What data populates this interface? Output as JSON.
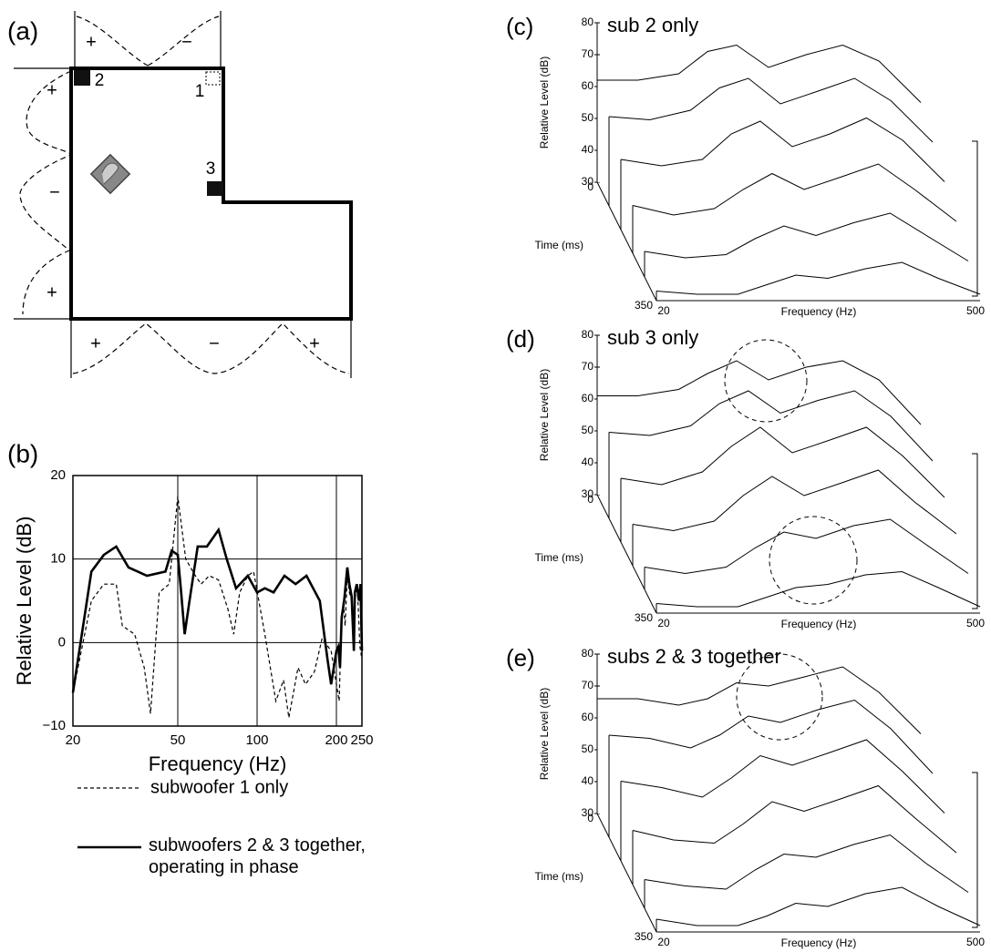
{
  "diagram": {
    "label": "(a)",
    "signs": [
      "+",
      "−",
      "+",
      "−",
      "+",
      "+",
      "−",
      "+"
    ],
    "speakers": [
      "2",
      "1",
      "3"
    ]
  },
  "chart_data": [
    {
      "type": "line",
      "label": "(b)",
      "xlabel": "Frequency (Hz)",
      "ylabel": "Relative Level (dB)",
      "xscale": "log",
      "xlim": [
        20,
        250
      ],
      "xticks": [
        20,
        50,
        100,
        200,
        250
      ],
      "ylim": [
        -10,
        20
      ],
      "yticks": [
        {
          "value": -10,
          "label": "−10"
        },
        0,
        10,
        20
      ],
      "grid": true,
      "series": [
        {
          "name": "subwoofer 1 only",
          "color": "#000000",
          "style": "dashed",
          "x": [
            20,
            23.5,
            26.2,
            29.2,
            30.8,
            34.3,
            37.3,
            39.4,
            42.5,
            46.4,
            50,
            53.6,
            58.3,
            61.3,
            65.8,
            71.4,
            77.5,
            81.5,
            85.9,
            92.2,
            97,
            107,
            117.8,
            126,
            132,
            143,
            152.7,
            165,
            176.5,
            191,
            200,
            204.9,
            208.3,
            212.4,
            215.8,
            220,
            224,
            228.5,
            233,
            235,
            240,
            245.6,
            250
          ],
          "values": [
            -6,
            5,
            7,
            7,
            2,
            1,
            -3,
            -8.5,
            6,
            7,
            17.5,
            10,
            8,
            7,
            8,
            7.5,
            4,
            1,
            6,
            8,
            8.5,
            1,
            -7,
            -4.5,
            -9,
            -3,
            -5,
            -3.5,
            0.5,
            -1,
            -5,
            -7,
            1,
            5,
            2,
            8,
            6,
            5,
            0,
            5,
            7,
            -0.5,
            -2
          ]
        },
        {
          "name": "subwoofers 2 & 3 together, operating in phase",
          "color": "#000000",
          "style": "solid",
          "x": [
            20,
            23.5,
            26.2,
            29.2,
            32.5,
            38.2,
            44.9,
            47.4,
            50,
            51.5,
            53.1,
            55.4,
            59.5,
            64.5,
            71.4,
            76.7,
            83.2,
            92.2,
            100,
            107,
            115.5,
            127,
            140,
            154,
            173,
            185,
            191,
            200,
            203.4,
            206.4,
            209.4,
            214,
            220,
            224,
            228.5,
            233,
            235,
            239,
            243.6,
            246.9,
            250
          ],
          "values": [
            -6,
            8.5,
            10.5,
            11.5,
            9,
            8,
            8.5,
            11,
            10.5,
            6,
            1,
            5,
            11.5,
            11.5,
            13.5,
            10,
            6.5,
            8,
            6,
            6.5,
            6,
            8,
            7,
            8,
            5,
            -2,
            -5,
            -1,
            -0.5,
            -3,
            3,
            5,
            9,
            7,
            5.5,
            -1,
            6,
            7,
            5,
            7,
            -1
          ]
        }
      ]
    },
    {
      "type": "waterfall",
      "label": "(c)",
      "title": "sub 2 only",
      "ylabel": "Relative Level (dB)",
      "xlabel": "Frequency (Hz)",
      "tlabel": "Time (ms)",
      "xscale": "log",
      "xlim": [
        20,
        500
      ],
      "xticks": [
        20,
        500
      ],
      "tlim": [
        0,
        350
      ],
      "tticks": [
        0,
        350
      ],
      "ylim": [
        30,
        80
      ],
      "yticks": [
        30,
        40,
        50,
        60,
        70,
        80
      ],
      "x": [
        20,
        30,
        45,
        60,
        80,
        110,
        160,
        230,
        330,
        500
      ],
      "series": [
        {
          "color": "#000000",
          "values": [
            62,
            62,
            64,
            71,
            73,
            66,
            70,
            73,
            68,
            55
          ]
        },
        {
          "color": "#000000",
          "values": [
            58,
            57,
            60,
            67,
            70,
            62,
            66,
            70,
            63,
            50
          ]
        },
        {
          "color": "#000000",
          "values": [
            52,
            50,
            52,
            60,
            64,
            56,
            60,
            65,
            58,
            45
          ]
        },
        {
          "color": "#000000",
          "values": [
            45,
            42,
            44,
            50,
            55,
            50,
            54,
            58,
            50,
            40
          ]
        },
        {
          "color": "#000000",
          "values": [
            38,
            36,
            37,
            42,
            46,
            43,
            47,
            50,
            43,
            35
          ]
        },
        {
          "color": "#000000",
          "values": [
            33,
            32,
            32,
            35,
            38,
            37,
            40,
            42,
            37,
            32
          ]
        }
      ]
    },
    {
      "type": "waterfall",
      "label": "(d)",
      "title": "sub 3 only",
      "ylabel": "Relative Level (dB)",
      "xlabel": "Frequency (Hz)",
      "tlabel": "Time (ms)",
      "xscale": "log",
      "xlim": [
        20,
        500
      ],
      "xticks": [
        20,
        500
      ],
      "tlim": [
        0,
        350
      ],
      "tticks": [
        0,
        350
      ],
      "ylim": [
        30,
        80
      ],
      "yticks": [
        30,
        40,
        50,
        60,
        70,
        80
      ],
      "x": [
        20,
        30,
        45,
        60,
        80,
        110,
        160,
        230,
        330,
        500
      ],
      "series": [
        {
          "color": "#000000",
          "values": [
            61,
            61,
            63,
            68,
            72,
            66,
            70,
            72,
            66,
            52
          ]
        },
        {
          "color": "#000000",
          "values": [
            57,
            56,
            59,
            66,
            70,
            63,
            67,
            70,
            62,
            48
          ]
        },
        {
          "color": "#000000",
          "values": [
            50,
            48,
            52,
            60,
            66,
            58,
            62,
            66,
            57,
            44
          ]
        },
        {
          "color": "#000000",
          "values": [
            43,
            41,
            44,
            52,
            58,
            52,
            56,
            60,
            50,
            40
          ]
        },
        {
          "color": "#000000",
          "values": [
            37,
            35,
            37,
            43,
            48,
            46,
            50,
            52,
            44,
            35
          ]
        },
        {
          "color": "#000000",
          "values": [
            33,
            32,
            32,
            35,
            38,
            39,
            42,
            43,
            38,
            32
          ]
        }
      ]
    },
    {
      "type": "waterfall",
      "label": "(e)",
      "title": "subs 2 & 3 together",
      "ylabel": "Relative Level (dB)",
      "xlabel": "Frequency (Hz)",
      "tlabel": "Time (ms)",
      "xscale": "log",
      "xlim": [
        20,
        500
      ],
      "xticks": [
        20,
        500
      ],
      "tlim": [
        0,
        350
      ],
      "tticks": [
        0,
        350
      ],
      "ylim": [
        30,
        80
      ],
      "yticks": [
        30,
        40,
        50,
        60,
        70,
        80
      ],
      "x": [
        20,
        30,
        45,
        60,
        80,
        110,
        160,
        230,
        330,
        500
      ],
      "series": [
        {
          "color": "#000000",
          "values": [
            66,
            66,
            64,
            66,
            71,
            70,
            73,
            76,
            68,
            55
          ]
        },
        {
          "color": "#000000",
          "values": [
            62,
            61,
            58,
            62,
            68,
            66,
            70,
            73,
            64,
            50
          ]
        },
        {
          "color": "#000000",
          "values": [
            55,
            53,
            50,
            56,
            63,
            60,
            64,
            68,
            58,
            45
          ]
        },
        {
          "color": "#000000",
          "values": [
            47,
            44,
            43,
            49,
            56,
            53,
            57,
            61,
            51,
            40
          ]
        },
        {
          "color": "#000000",
          "values": [
            39,
            37,
            36,
            42,
            47,
            46,
            50,
            53,
            44,
            35
          ]
        },
        {
          "color": "#000000",
          "values": [
            34,
            32,
            32,
            35,
            39,
            38,
            42,
            44,
            38,
            32
          ]
        }
      ]
    }
  ]
}
